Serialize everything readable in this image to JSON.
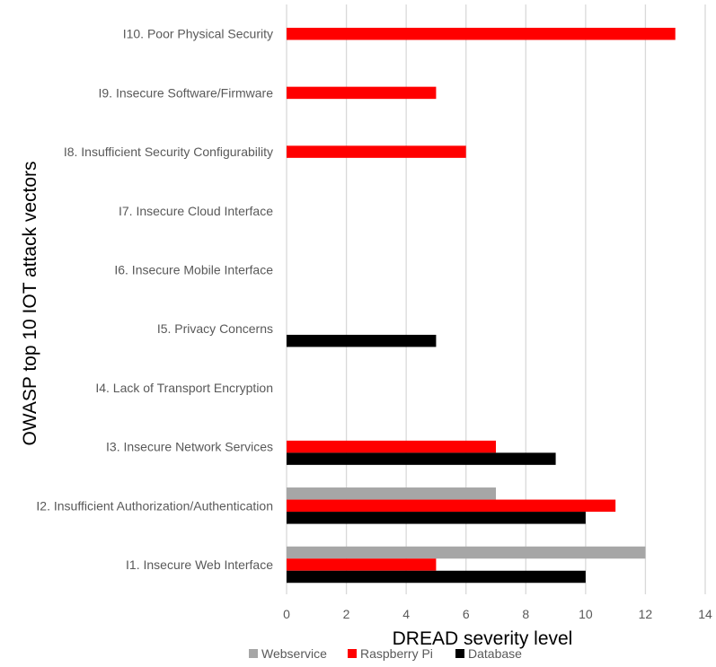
{
  "chart_data": {
    "type": "bar",
    "orientation": "horizontal",
    "xlabel": "DREAD severity level",
    "ylabel": "OWASP top 10 IOT attack vectors",
    "xlim": [
      0,
      14
    ],
    "xticks": [
      0,
      2,
      4,
      6,
      8,
      10,
      12,
      14
    ],
    "grid": "vertical",
    "legend_position": "bottom",
    "categories": [
      "I1. Insecure Web Interface",
      "I2. Insufficient Authorization/Authentication",
      "I3. Insecure Network Services",
      "I4. Lack of Transport Encryption",
      "I5. Privacy Concerns",
      "I6. Insecure Mobile Interface",
      "I7. Insecure Cloud Interface",
      "I8. Insufficient Security Configurability",
      "I9. Insecure Software/Firmware",
      "I10. Poor Physical Security"
    ],
    "series": [
      {
        "name": "Webservice",
        "color": "#a6a6a6",
        "values": [
          12,
          7,
          null,
          null,
          null,
          null,
          null,
          null,
          null,
          null
        ]
      },
      {
        "name": "Raspberry Pi",
        "color": "#ff0000",
        "values": [
          5,
          11,
          7,
          null,
          null,
          null,
          null,
          6,
          5,
          13
        ]
      },
      {
        "name": "Database",
        "color": "#000000",
        "values": [
          10,
          10,
          9,
          null,
          5,
          null,
          null,
          null,
          null,
          null
        ]
      }
    ]
  },
  "colors": {
    "grid": "#d9d9d9",
    "axis_text": "#595959",
    "title_text": "#000000"
  }
}
